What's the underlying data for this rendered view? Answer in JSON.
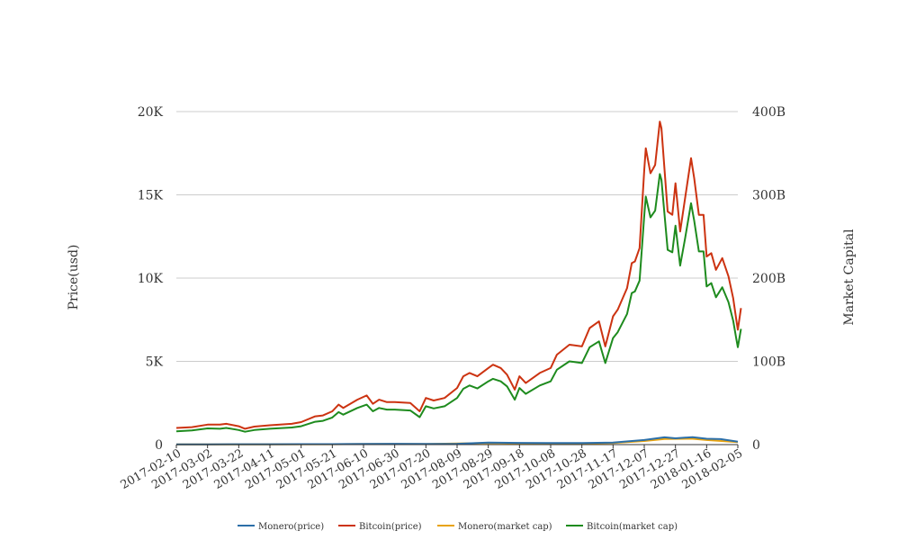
{
  "chart_data": {
    "type": "line",
    "x_start": "2017-02-10",
    "x_end": "2018-02-05",
    "x_tick_labels": [
      "2017-02-10",
      "2017-03-02",
      "2017-03-22",
      "2017-04-11",
      "2017-05-01",
      "2017-05-21",
      "2017-06-10",
      "2017-06-30",
      "2017-07-20",
      "2017-08-09",
      "2017-08-29",
      "2017-09-18",
      "2017-10-08",
      "2017-10-28",
      "2017-11-17",
      "2017-12-07",
      "2017-12-27",
      "2018-01-16",
      "2018-02-05"
    ],
    "y_left": {
      "label": "Price(usd)",
      "ticks": [
        "0",
        "5K",
        "10K",
        "15K",
        "20K"
      ],
      "range": [
        0,
        20000
      ]
    },
    "y_right": {
      "label": "Market Capital",
      "ticks": [
        "0",
        "100B",
        "200B",
        "300B",
        "400B"
      ],
      "range": [
        0,
        400000000000
      ]
    },
    "grid": true,
    "legend_position": "bottom",
    "series": [
      {
        "name": "Monero(price)",
        "axis": "left",
        "color": "#2c6fa8",
        "points": [
          [
            "2017-02-10",
            13
          ],
          [
            "2017-03-02",
            15
          ],
          [
            "2017-03-22",
            22
          ],
          [
            "2017-04-11",
            21
          ],
          [
            "2017-05-01",
            25
          ],
          [
            "2017-05-21",
            29
          ],
          [
            "2017-06-10",
            45
          ],
          [
            "2017-06-30",
            47
          ],
          [
            "2017-07-20",
            43
          ],
          [
            "2017-08-09",
            50
          ],
          [
            "2017-08-29",
            125
          ],
          [
            "2017-09-18",
            100
          ],
          [
            "2017-10-08",
            90
          ],
          [
            "2017-10-28",
            90
          ],
          [
            "2017-11-17",
            120
          ],
          [
            "2017-12-07",
            275
          ],
          [
            "2017-12-20",
            440
          ],
          [
            "2017-12-27",
            380
          ],
          [
            "2018-01-07",
            450
          ],
          [
            "2018-01-16",
            350
          ],
          [
            "2018-01-25",
            330
          ],
          [
            "2018-02-05",
            180
          ]
        ]
      },
      {
        "name": "Bitcoin(price)",
        "axis": "left",
        "color": "#cc3311",
        "points": [
          [
            "2017-02-10",
            1000
          ],
          [
            "2017-02-20",
            1050
          ],
          [
            "2017-03-02",
            1200
          ],
          [
            "2017-03-10",
            1200
          ],
          [
            "2017-03-14",
            1250
          ],
          [
            "2017-03-22",
            1100
          ],
          [
            "2017-03-26",
            950
          ],
          [
            "2017-04-01",
            1080
          ],
          [
            "2017-04-11",
            1160
          ],
          [
            "2017-04-25",
            1250
          ],
          [
            "2017-05-01",
            1350
          ],
          [
            "2017-05-10",
            1700
          ],
          [
            "2017-05-15",
            1750
          ],
          [
            "2017-05-21",
            2000
          ],
          [
            "2017-05-25",
            2400
          ],
          [
            "2017-05-28",
            2200
          ],
          [
            "2017-06-06",
            2700
          ],
          [
            "2017-06-12",
            2950
          ],
          [
            "2017-06-16",
            2450
          ],
          [
            "2017-06-20",
            2700
          ],
          [
            "2017-06-25",
            2550
          ],
          [
            "2017-06-30",
            2550
          ],
          [
            "2017-07-10",
            2500
          ],
          [
            "2017-07-16",
            2000
          ],
          [
            "2017-07-20",
            2800
          ],
          [
            "2017-07-25",
            2650
          ],
          [
            "2017-08-01",
            2800
          ],
          [
            "2017-08-09",
            3400
          ],
          [
            "2017-08-13",
            4100
          ],
          [
            "2017-08-17",
            4300
          ],
          [
            "2017-08-22",
            4100
          ],
          [
            "2017-08-29",
            4600
          ],
          [
            "2017-09-01",
            4800
          ],
          [
            "2017-09-06",
            4600
          ],
          [
            "2017-09-10",
            4200
          ],
          [
            "2017-09-15",
            3300
          ],
          [
            "2017-09-18",
            4100
          ],
          [
            "2017-09-22",
            3700
          ],
          [
            "2017-10-01",
            4300
          ],
          [
            "2017-10-08",
            4600
          ],
          [
            "2017-10-12",
            5400
          ],
          [
            "2017-10-20",
            6000
          ],
          [
            "2017-10-28",
            5900
          ],
          [
            "2017-11-02",
            7000
          ],
          [
            "2017-11-08",
            7400
          ],
          [
            "2017-11-12",
            5900
          ],
          [
            "2017-11-17",
            7700
          ],
          [
            "2017-11-20",
            8100
          ],
          [
            "2017-11-26",
            9400
          ],
          [
            "2017-11-29",
            10900
          ],
          [
            "2017-12-01",
            11000
          ],
          [
            "2017-12-04",
            11800
          ],
          [
            "2017-12-07",
            16500
          ],
          [
            "2017-12-08",
            17800
          ],
          [
            "2017-12-11",
            16300
          ],
          [
            "2017-12-14",
            16800
          ],
          [
            "2017-12-17",
            19400
          ],
          [
            "2017-12-18",
            19000
          ],
          [
            "2017-12-22",
            14000
          ],
          [
            "2017-12-25",
            13800
          ],
          [
            "2017-12-27",
            15700
          ],
          [
            "2017-12-30",
            12800
          ],
          [
            "2018-01-02",
            14700
          ],
          [
            "2018-01-06",
            17200
          ],
          [
            "2018-01-08",
            16000
          ],
          [
            "2018-01-11",
            13800
          ],
          [
            "2018-01-14",
            13800
          ],
          [
            "2018-01-16",
            11300
          ],
          [
            "2018-01-19",
            11500
          ],
          [
            "2018-01-22",
            10500
          ],
          [
            "2018-01-26",
            11200
          ],
          [
            "2018-01-30",
            10100
          ],
          [
            "2018-02-02",
            8800
          ],
          [
            "2018-02-04",
            7500
          ],
          [
            "2018-02-05",
            6900
          ],
          [
            "2018-02-07",
            8200
          ]
        ]
      },
      {
        "name": "Monero(market cap)",
        "axis": "right",
        "color": "#e8a30f",
        "points": [
          [
            "2017-02-10",
            180000000
          ],
          [
            "2017-03-22",
            300000000
          ],
          [
            "2017-05-21",
            450000000
          ],
          [
            "2017-06-10",
            650000000
          ],
          [
            "2017-07-20",
            620000000
          ],
          [
            "2017-08-29",
            1900000000
          ],
          [
            "2017-09-18",
            1500000000
          ],
          [
            "2017-10-28",
            1400000000
          ],
          [
            "2017-11-17",
            1900000000
          ],
          [
            "2017-12-07",
            4300000000
          ],
          [
            "2017-12-20",
            6800000000
          ],
          [
            "2018-01-07",
            7000000000
          ],
          [
            "2018-01-16",
            5500000000
          ],
          [
            "2018-02-05",
            2900000000
          ]
        ]
      },
      {
        "name": "Bitcoin(market cap)",
        "axis": "right",
        "color": "#1e8b1e",
        "points": [
          [
            "2017-02-10",
            16000000000
          ],
          [
            "2017-02-20",
            17000000000
          ],
          [
            "2017-03-02",
            19500000000
          ],
          [
            "2017-03-10",
            19000000000
          ],
          [
            "2017-03-14",
            20000000000
          ],
          [
            "2017-03-22",
            17500000000
          ],
          [
            "2017-03-26",
            15500000000
          ],
          [
            "2017-04-01",
            17500000000
          ],
          [
            "2017-04-11",
            19000000000
          ],
          [
            "2017-04-25",
            20500000000
          ],
          [
            "2017-05-01",
            22000000000
          ],
          [
            "2017-05-10",
            27500000000
          ],
          [
            "2017-05-15",
            28500000000
          ],
          [
            "2017-05-21",
            32500000000
          ],
          [
            "2017-05-25",
            39000000000
          ],
          [
            "2017-05-28",
            36000000000
          ],
          [
            "2017-06-06",
            44000000000
          ],
          [
            "2017-06-12",
            48000000000
          ],
          [
            "2017-06-16",
            40000000000
          ],
          [
            "2017-06-20",
            44000000000
          ],
          [
            "2017-06-25",
            42000000000
          ],
          [
            "2017-06-30",
            42000000000
          ],
          [
            "2017-07-10",
            41000000000
          ],
          [
            "2017-07-16",
            33000000000
          ],
          [
            "2017-07-20",
            46000000000
          ],
          [
            "2017-07-25",
            43500000000
          ],
          [
            "2017-08-01",
            46000000000
          ],
          [
            "2017-08-09",
            56000000000
          ],
          [
            "2017-08-13",
            67000000000
          ],
          [
            "2017-08-17",
            71000000000
          ],
          [
            "2017-08-22",
            67500000000
          ],
          [
            "2017-08-29",
            76000000000
          ],
          [
            "2017-09-01",
            79000000000
          ],
          [
            "2017-09-06",
            76000000000
          ],
          [
            "2017-09-10",
            70000000000
          ],
          [
            "2017-09-15",
            54000000000
          ],
          [
            "2017-09-18",
            68000000000
          ],
          [
            "2017-09-22",
            61000000000
          ],
          [
            "2017-10-01",
            71000000000
          ],
          [
            "2017-10-08",
            76000000000
          ],
          [
            "2017-10-12",
            90000000000
          ],
          [
            "2017-10-20",
            100000000000
          ],
          [
            "2017-10-28",
            98000000000
          ],
          [
            "2017-11-02",
            117000000000
          ],
          [
            "2017-11-08",
            124000000000
          ],
          [
            "2017-11-12",
            98000000000
          ],
          [
            "2017-11-17",
            128000000000
          ],
          [
            "2017-11-20",
            135000000000
          ],
          [
            "2017-11-26",
            157000000000
          ],
          [
            "2017-11-29",
            182000000000
          ],
          [
            "2017-12-01",
            184000000000
          ],
          [
            "2017-12-04",
            197000000000
          ],
          [
            "2017-12-07",
            275000000000
          ],
          [
            "2017-12-08",
            298000000000
          ],
          [
            "2017-12-11",
            273000000000
          ],
          [
            "2017-12-14",
            281000000000
          ],
          [
            "2017-12-17",
            325000000000
          ],
          [
            "2017-12-18",
            318000000000
          ],
          [
            "2017-12-22",
            234000000000
          ],
          [
            "2017-12-25",
            231000000000
          ],
          [
            "2017-12-27",
            263000000000
          ],
          [
            "2017-12-30",
            215000000000
          ],
          [
            "2018-01-02",
            246000000000
          ],
          [
            "2018-01-06",
            290000000000
          ],
          [
            "2018-01-08",
            269000000000
          ],
          [
            "2018-01-11",
            232000000000
          ],
          [
            "2018-01-14",
            232000000000
          ],
          [
            "2018-01-16",
            190000000000
          ],
          [
            "2018-01-19",
            194000000000
          ],
          [
            "2018-01-22",
            177000000000
          ],
          [
            "2018-01-26",
            189000000000
          ],
          [
            "2018-01-30",
            171000000000
          ],
          [
            "2018-02-02",
            149000000000
          ],
          [
            "2018-02-04",
            127000000000
          ],
          [
            "2018-02-05",
            117000000000
          ],
          [
            "2018-02-07",
            139000000000
          ]
        ]
      }
    ]
  }
}
